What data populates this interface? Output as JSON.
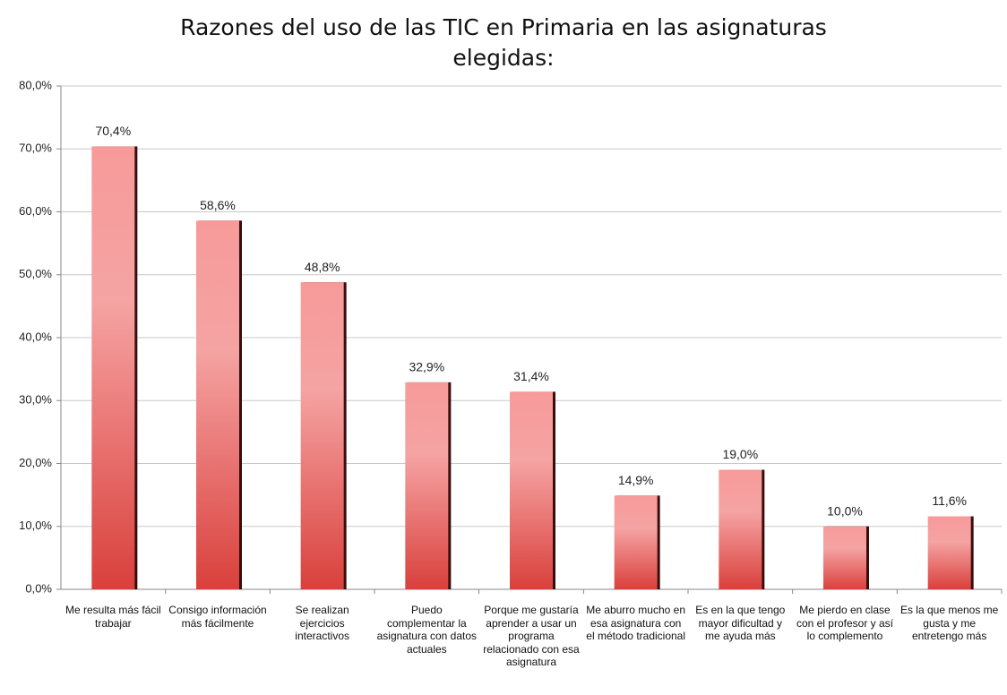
{
  "chart_data": {
    "type": "bar",
    "title": "Razones del uso de las TIC en Primaria en las asignaturas elegidas:",
    "categories": [
      "Me resulta más fácil trabajar",
      "Consigo información más fácilmente",
      "Se realizan ejercicios interactivos",
      "Puedo complementar la asignatura con datos actuales",
      "Porque me gustaría aprender a usar un programa relacionado con esa asignatura",
      "Me aburro mucho en esa asignatura con el método tradicional",
      "Es en la que tengo mayor dificultad y me ayuda más",
      "Me pierdo en clase con el profesor y así lo complemento",
      "Es la que menos me gusta y me entretengo más"
    ],
    "values": [
      70.4,
      58.6,
      48.8,
      32.9,
      31.4,
      14.9,
      19.0,
      10.0,
      11.6
    ],
    "value_labels": [
      "70,4%",
      "58,6%",
      "48,8%",
      "32,9%",
      "31,4%",
      "14,9%",
      "19,0%",
      "10,0%",
      "11,6%"
    ],
    "color": "#d9403c",
    "ylim": [
      0,
      80
    ],
    "yticks": [
      {
        "value": 0,
        "label": "0,0%"
      },
      {
        "value": 10,
        "label": "10,0%"
      },
      {
        "value": 20,
        "label": "20,0%"
      },
      {
        "value": 30,
        "label": "30,0%"
      },
      {
        "value": 40,
        "label": "40,0%"
      },
      {
        "value": 50,
        "label": "50,0%"
      },
      {
        "value": 60,
        "label": "60,0%"
      },
      {
        "value": 70,
        "label": "70,0%"
      },
      {
        "value": 80,
        "label": "80,0%"
      }
    ],
    "grid": true
  }
}
